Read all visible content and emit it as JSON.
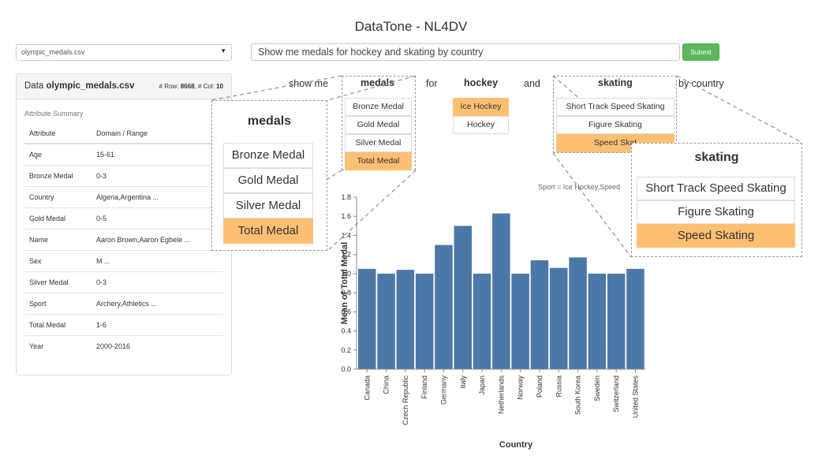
{
  "app": {
    "title": "DataTone - NL4DV"
  },
  "toolbar": {
    "file_select": "olympic_medals.csv",
    "query": "Show me medals for hockey and skating by country",
    "submit_label": "Submit"
  },
  "data_panel": {
    "title_prefix": "Data ",
    "filename": "olympic_medals.csv",
    "rows_label": "# Row: ",
    "rows": "8668",
    "cols_label": ", # Col: ",
    "cols": "10",
    "summary_label": "Attribute Summary",
    "col_attribute": "Attribute",
    "col_domain": "Domain / Range",
    "rows_data": [
      {
        "name": "Age",
        "domain": "15-61"
      },
      {
        "name": "Bronze Medal",
        "domain": "0-3"
      },
      {
        "name": "Country",
        "domain": "Algeria,Argentina ..."
      },
      {
        "name": "Gold Medal",
        "domain": "0-5"
      },
      {
        "name": "Name",
        "domain": "Aaron Brown,Aaron Egbele ..."
      },
      {
        "name": "Sex",
        "domain": "M ..."
      },
      {
        "name": "Silver Medal",
        "domain": "0-3"
      },
      {
        "name": "Sport",
        "domain": "Archery,Athletics ..."
      },
      {
        "name": "Total Medal",
        "domain": "1-6"
      },
      {
        "name": "Year",
        "domain": "2000-2016"
      }
    ]
  },
  "sentence": {
    "show_me": "show me",
    "medals": "medals",
    "for": "for",
    "hockey": "hockey",
    "and": "and",
    "skating": "skating",
    "by_country": "by country"
  },
  "medal_options": [
    "Bronze Medal",
    "Gold Medal",
    "Silver Medal",
    "Total Medal"
  ],
  "medal_selected": 3,
  "hockey_options": [
    "Ice Hockey",
    "Hockey"
  ],
  "hockey_selected": 0,
  "skating_options": [
    "Short Track Speed Skating",
    "Figure Skating",
    "Speed Skating"
  ],
  "skating_selected": 2,
  "skating_small_visible": [
    "Short Track Speed Skating",
    "Figure Skating",
    "Speed Skat"
  ],
  "medals_zoom": {
    "title": "medals",
    "options": [
      "Bronze Medal",
      "Gold Medal",
      "Silver Medal",
      "Total Medal"
    ]
  },
  "skating_zoom": {
    "title": "skating",
    "options": [
      "Short Track Speed Skating",
      "Figure Skating",
      "Speed Skating"
    ]
  },
  "chart_note": "Sport = Ice Hockey,Speed",
  "colors": {
    "bar": "#4c78a8",
    "selected": "#ffbf73",
    "submit": "#5cb85c"
  },
  "chart_data": {
    "type": "bar",
    "xlabel": "Country",
    "ylabel": "Mean of Total Medal",
    "ylim": [
      0,
      1.8
    ],
    "yticks": [
      "0.0",
      "0.2",
      "0.4",
      "0.6",
      "0.8",
      "1.0",
      "1.2",
      "1.4",
      "1.6",
      "1.8"
    ],
    "categories": [
      "Canada",
      "China",
      "Czech Republic",
      "Finland",
      "Germany",
      "Italy",
      "Japan",
      "Netherlands",
      "Norway",
      "Poland",
      "Russia",
      "South Korea",
      "Sweden",
      "Switzerland",
      "United States"
    ],
    "values": [
      1.05,
      1.0,
      1.04,
      1.0,
      1.3,
      1.5,
      1.0,
      1.63,
      1.0,
      1.14,
      1.06,
      1.17,
      1.0,
      1.0,
      1.05
    ]
  }
}
